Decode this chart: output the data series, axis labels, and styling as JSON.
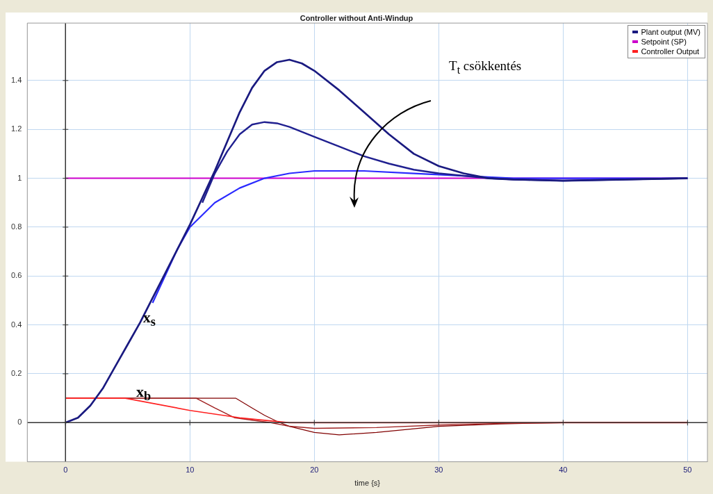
{
  "chart_data": {
    "type": "line",
    "title": "Controller without Anti-Windup",
    "xlabel": "time {s}",
    "xlim": [
      -3.07,
      51.6
    ],
    "ylim": [
      -0.16,
      1.635
    ],
    "xticks": [
      0,
      10,
      20,
      30,
      40,
      50
    ],
    "yticks": [
      0,
      0.2,
      0.4,
      0.6,
      0.8,
      1,
      1.2,
      1.4
    ],
    "grid": true,
    "legend": "top right",
    "marker": "none",
    "line_style": "solid",
    "series": [
      {
        "name": "Plant output (MV)",
        "color": "#1a1a80",
        "x": [
          0,
          1,
          2,
          3,
          4,
          5,
          6,
          7,
          8,
          9,
          10,
          11,
          12,
          13,
          14,
          15,
          16,
          17,
          18,
          19,
          20,
          22,
          24,
          26,
          28,
          30,
          32,
          34,
          36,
          40,
          45,
          50
        ],
        "values": [
          0,
          0.02,
          0.07,
          0.14,
          0.23,
          0.32,
          0.41,
          0.51,
          0.61,
          0.71,
          0.81,
          0.92,
          1.03,
          1.15,
          1.27,
          1.37,
          1.44,
          1.475,
          1.485,
          1.47,
          1.44,
          1.36,
          1.27,
          1.18,
          1.1,
          1.05,
          1.02,
          1,
          0.995,
          0.99,
          0.995,
          1
        ]
      },
      {
        "color": "#202090",
        "x": [
          11,
          12,
          13,
          14,
          15,
          16,
          17,
          18,
          20,
          22,
          24,
          26,
          28,
          30,
          32,
          34,
          36,
          40,
          45,
          50
        ],
        "values": [
          0.9,
          1.02,
          1.11,
          1.18,
          1.22,
          1.23,
          1.225,
          1.21,
          1.17,
          1.13,
          1.09,
          1.06,
          1.035,
          1.02,
          1.01,
          1,
          0.995,
          0.99,
          0.995,
          1
        ]
      },
      {
        "color": "#2a2aff",
        "x": [
          7,
          8,
          9,
          10,
          12,
          14,
          16,
          18,
          20,
          24,
          28,
          32,
          36,
          40,
          50
        ],
        "values": [
          0.49,
          0.6,
          0.71,
          0.8,
          0.9,
          0.96,
          1,
          1.02,
          1.03,
          1.03,
          1.02,
          1.01,
          1,
          1,
          1
        ]
      },
      {
        "name": "Setpoint (SP)",
        "color": "#cc00cc",
        "x": [
          0,
          50
        ],
        "values": [
          1,
          1
        ]
      },
      {
        "name": "Controller Output",
        "color": "#ff2020",
        "x": [
          0,
          4.8,
          10,
          14,
          18,
          50
        ],
        "values": [
          0.1,
          0.1,
          0.05,
          0.02,
          0,
          0
        ]
      },
      {
        "color": "#a02020",
        "x": [
          0,
          10.5,
          12,
          13.6,
          15,
          16.5,
          18,
          20,
          25,
          30,
          35,
          40,
          50
        ],
        "values": [
          0.1,
          0.1,
          0.06,
          0.02,
          0.01,
          0,
          -0.015,
          -0.023,
          -0.02,
          -0.01,
          -0.003,
          0,
          0
        ]
      },
      {
        "color": "#800000",
        "x": [
          0,
          13.7,
          15,
          16,
          17,
          18,
          20,
          22,
          25,
          28,
          30,
          35,
          40,
          50
        ],
        "values": [
          0.1,
          0.1,
          0.06,
          0.03,
          0.005,
          -0.015,
          -0.04,
          -0.05,
          -0.04,
          -0.025,
          -0.015,
          -0.005,
          0,
          0
        ]
      }
    ],
    "annotations": [
      "T$_{t}$ csökkentés",
      "x$_{s}$",
      "x$_{b}$"
    ]
  }
}
